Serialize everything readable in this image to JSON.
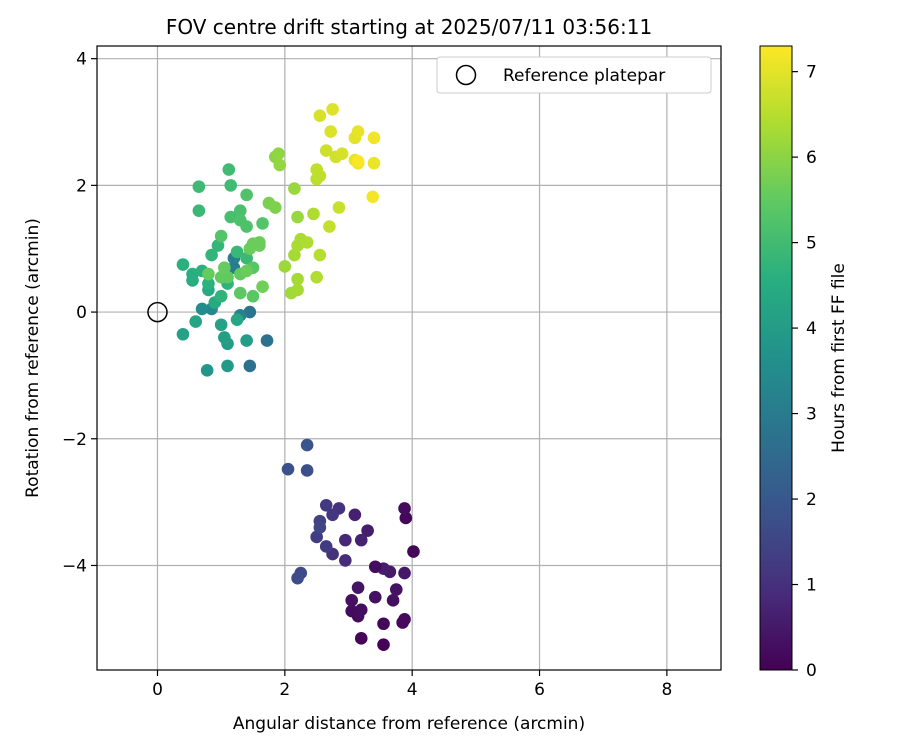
{
  "chart_data": {
    "type": "scatter",
    "title": "FOV centre drift starting at 2025/07/11 03:56:11",
    "xlabel": "Angular distance from reference (arcmin)",
    "ylabel": "Rotation from reference (arcmin)",
    "xlim": [
      -0.95,
      8.85
    ],
    "ylim": [
      -5.65,
      4.2
    ],
    "xticks": [
      0,
      2,
      4,
      6,
      8
    ],
    "yticks": [
      -4,
      -2,
      0,
      2,
      4
    ],
    "xtick_labels": [
      "0",
      "2",
      "4",
      "6",
      "8"
    ],
    "ytick_labels": [
      "−4",
      "−2",
      "0",
      "2",
      "4"
    ],
    "grid": true,
    "legend": {
      "placement": "top-right",
      "entries": [
        "Reference platepar"
      ]
    },
    "reference_point": {
      "x": 0,
      "y": 0,
      "label": "Reference platepar",
      "marker": "open-circle"
    },
    "colorbar": {
      "label": "Hours from first FF file",
      "colormap": "viridis",
      "range": [
        0,
        7.3
      ],
      "ticks": [
        0,
        1,
        2,
        3,
        4,
        5,
        6,
        7
      ],
      "tick_labels": [
        "0",
        "1",
        "2",
        "3",
        "4",
        "5",
        "6",
        "7"
      ]
    },
    "points": [
      {
        "x": 3.55,
        "y": -5.25,
        "h": 0.05
      },
      {
        "x": 3.2,
        "y": -5.15,
        "h": 0.1
      },
      {
        "x": 3.85,
        "y": -4.9,
        "h": 0.12
      },
      {
        "x": 3.55,
        "y": -4.92,
        "h": 0.15
      },
      {
        "x": 3.88,
        "y": -4.85,
        "h": 0.18
      },
      {
        "x": 3.15,
        "y": -4.8,
        "h": 0.2
      },
      {
        "x": 3.05,
        "y": -4.72,
        "h": 0.22
      },
      {
        "x": 3.2,
        "y": -4.7,
        "h": 0.25
      },
      {
        "x": 3.7,
        "y": -4.55,
        "h": 0.3
      },
      {
        "x": 3.05,
        "y": -4.55,
        "h": 0.32
      },
      {
        "x": 3.42,
        "y": -4.5,
        "h": 0.35
      },
      {
        "x": 3.75,
        "y": -4.38,
        "h": 0.38
      },
      {
        "x": 3.15,
        "y": -4.35,
        "h": 0.4
      },
      {
        "x": 3.88,
        "y": -4.12,
        "h": 0.45
      },
      {
        "x": 3.65,
        "y": -4.1,
        "h": 0.5
      },
      {
        "x": 3.55,
        "y": -4.05,
        "h": 0.55
      },
      {
        "x": 3.42,
        "y": -4.02,
        "h": 0.2
      },
      {
        "x": 4.02,
        "y": -3.78,
        "h": 0.1
      },
      {
        "x": 3.9,
        "y": -3.25,
        "h": 0.15
      },
      {
        "x": 3.88,
        "y": -3.1,
        "h": 0.2
      },
      {
        "x": 3.3,
        "y": -3.45,
        "h": 0.6
      },
      {
        "x": 3.1,
        "y": -3.2,
        "h": 0.65
      },
      {
        "x": 3.2,
        "y": -3.6,
        "h": 0.7
      },
      {
        "x": 2.95,
        "y": -3.6,
        "h": 0.8
      },
      {
        "x": 2.95,
        "y": -3.92,
        "h": 0.9
      },
      {
        "x": 2.75,
        "y": -3.82,
        "h": 1.0
      },
      {
        "x": 2.85,
        "y": -3.1,
        "h": 1.05
      },
      {
        "x": 2.75,
        "y": -3.2,
        "h": 1.15
      },
      {
        "x": 2.65,
        "y": -3.05,
        "h": 1.2
      },
      {
        "x": 2.65,
        "y": -3.7,
        "h": 1.25
      },
      {
        "x": 2.5,
        "y": -3.55,
        "h": 1.3
      },
      {
        "x": 2.55,
        "y": -3.3,
        "h": 1.4
      },
      {
        "x": 2.55,
        "y": -3.4,
        "h": 1.5
      },
      {
        "x": 2.25,
        "y": -4.12,
        "h": 1.6
      },
      {
        "x": 2.2,
        "y": -4.2,
        "h": 1.65
      },
      {
        "x": 2.35,
        "y": -2.5,
        "h": 1.75
      },
      {
        "x": 2.05,
        "y": -2.48,
        "h": 1.8
      },
      {
        "x": 2.35,
        "y": -2.1,
        "h": 1.9
      },
      {
        "x": 1.45,
        "y": -0.85,
        "h": 2.7
      },
      {
        "x": 1.72,
        "y": -0.45,
        "h": 2.75
      },
      {
        "x": 1.45,
        "y": 0.0,
        "h": 2.8
      },
      {
        "x": 1.2,
        "y": 0.7,
        "h": 3.0
      },
      {
        "x": 1.2,
        "y": 0.85,
        "h": 3.1
      },
      {
        "x": 1.3,
        "y": -0.05,
        "h": 3.2
      },
      {
        "x": 0.85,
        "y": 0.05,
        "h": 3.4
      },
      {
        "x": 0.7,
        "y": 0.05,
        "h": 3.5
      },
      {
        "x": 0.78,
        "y": -0.92,
        "h": 3.8
      },
      {
        "x": 1.1,
        "y": -0.85,
        "h": 3.9
      },
      {
        "x": 1.4,
        "y": -0.45,
        "h": 4.0
      },
      {
        "x": 1.1,
        "y": -0.5,
        "h": 4.0
      },
      {
        "x": 1.05,
        "y": -0.4,
        "h": 4.1
      },
      {
        "x": 0.4,
        "y": -0.35,
        "h": 4.2
      },
      {
        "x": 0.6,
        "y": -0.15,
        "h": 4.25
      },
      {
        "x": 1.25,
        "y": -0.12,
        "h": 4.3
      },
      {
        "x": 1.0,
        "y": -0.2,
        "h": 4.2
      },
      {
        "x": 0.8,
        "y": 0.35,
        "h": 4.4
      },
      {
        "x": 0.9,
        "y": 0.15,
        "h": 4.45
      },
      {
        "x": 0.55,
        "y": 0.5,
        "h": 4.5
      },
      {
        "x": 0.55,
        "y": 0.6,
        "h": 4.55
      },
      {
        "x": 0.7,
        "y": 0.65,
        "h": 4.6
      },
      {
        "x": 0.4,
        "y": 0.75,
        "h": 4.6
      },
      {
        "x": 0.8,
        "y": 0.45,
        "h": 4.65
      },
      {
        "x": 1.0,
        "y": 0.25,
        "h": 4.7
      },
      {
        "x": 1.1,
        "y": 0.45,
        "h": 4.7
      },
      {
        "x": 0.85,
        "y": 0.9,
        "h": 4.75
      },
      {
        "x": 0.95,
        "y": 1.05,
        "h": 4.8
      },
      {
        "x": 1.25,
        "y": 0.95,
        "h": 4.85
      },
      {
        "x": 1.4,
        "y": 0.85,
        "h": 4.9
      },
      {
        "x": 0.65,
        "y": 1.6,
        "h": 4.9
      },
      {
        "x": 0.65,
        "y": 1.98,
        "h": 4.95
      },
      {
        "x": 1.15,
        "y": 2.0,
        "h": 5.0
      },
      {
        "x": 1.12,
        "y": 2.25,
        "h": 5.0
      },
      {
        "x": 1.15,
        "y": 1.5,
        "h": 5.1
      },
      {
        "x": 1.3,
        "y": 1.6,
        "h": 5.15
      },
      {
        "x": 1.3,
        "y": 1.45,
        "h": 5.2
      },
      {
        "x": 1.4,
        "y": 1.35,
        "h": 5.2
      },
      {
        "x": 1.4,
        "y": 1.85,
        "h": 5.25
      },
      {
        "x": 1.65,
        "y": 1.4,
        "h": 5.3
      },
      {
        "x": 1.0,
        "y": 1.2,
        "h": 5.3
      },
      {
        "x": 1.5,
        "y": 0.7,
        "h": 5.35
      },
      {
        "x": 1.5,
        "y": 0.25,
        "h": 5.4
      },
      {
        "x": 1.3,
        "y": 0.3,
        "h": 5.45
      },
      {
        "x": 1.3,
        "y": 0.6,
        "h": 5.5
      },
      {
        "x": 1.1,
        "y": 0.55,
        "h": 5.5
      },
      {
        "x": 1.0,
        "y": 0.55,
        "h": 5.5
      },
      {
        "x": 1.05,
        "y": 0.7,
        "h": 5.55
      },
      {
        "x": 0.8,
        "y": 0.6,
        "h": 5.55
      },
      {
        "x": 1.4,
        "y": 0.65,
        "h": 5.6
      },
      {
        "x": 1.45,
        "y": 1.0,
        "h": 5.6
      },
      {
        "x": 1.5,
        "y": 1.08,
        "h": 5.6
      },
      {
        "x": 1.6,
        "y": 1.1,
        "h": 5.65
      },
      {
        "x": 1.65,
        "y": 0.4,
        "h": 5.7
      },
      {
        "x": 1.75,
        "y": 1.72,
        "h": 5.8
      },
      {
        "x": 1.85,
        "y": 1.65,
        "h": 5.85
      },
      {
        "x": 1.6,
        "y": 1.05,
        "h": 5.6
      },
      {
        "x": 1.85,
        "y": 2.45,
        "h": 6.0
      },
      {
        "x": 1.9,
        "y": 2.5,
        "h": 6.05
      },
      {
        "x": 1.92,
        "y": 2.32,
        "h": 6.1
      },
      {
        "x": 2.2,
        "y": 1.5,
        "h": 6.15
      },
      {
        "x": 2.15,
        "y": 1.95,
        "h": 6.15
      },
      {
        "x": 2.0,
        "y": 0.72,
        "h": 6.2
      },
      {
        "x": 2.1,
        "y": 0.3,
        "h": 6.25
      },
      {
        "x": 2.2,
        "y": 0.35,
        "h": 6.3
      },
      {
        "x": 2.2,
        "y": 0.52,
        "h": 6.3
      },
      {
        "x": 2.15,
        "y": 0.9,
        "h": 6.3
      },
      {
        "x": 2.2,
        "y": 1.05,
        "h": 6.35
      },
      {
        "x": 2.25,
        "y": 1.15,
        "h": 6.35
      },
      {
        "x": 2.35,
        "y": 1.1,
        "h": 6.4
      },
      {
        "x": 2.45,
        "y": 1.55,
        "h": 6.4
      },
      {
        "x": 2.5,
        "y": 0.55,
        "h": 6.45
      },
      {
        "x": 2.55,
        "y": 0.9,
        "h": 6.5
      },
      {
        "x": 2.5,
        "y": 2.1,
        "h": 6.55
      },
      {
        "x": 2.5,
        "y": 2.25,
        "h": 6.6
      },
      {
        "x": 2.55,
        "y": 2.15,
        "h": 6.6
      },
      {
        "x": 2.7,
        "y": 1.35,
        "h": 6.65
      },
      {
        "x": 2.85,
        "y": 1.65,
        "h": 6.7
      },
      {
        "x": 2.65,
        "y": 2.55,
        "h": 6.75
      },
      {
        "x": 2.8,
        "y": 2.45,
        "h": 6.8
      },
      {
        "x": 2.9,
        "y": 2.5,
        "h": 6.85
      },
      {
        "x": 2.55,
        "y": 3.1,
        "h": 6.85
      },
      {
        "x": 2.72,
        "y": 2.85,
        "h": 6.9
      },
      {
        "x": 2.75,
        "y": 3.2,
        "h": 6.95
      },
      {
        "x": 3.1,
        "y": 2.75,
        "h": 7.0
      },
      {
        "x": 3.15,
        "y": 2.85,
        "h": 7.05
      },
      {
        "x": 3.1,
        "y": 2.4,
        "h": 7.05
      },
      {
        "x": 3.15,
        "y": 2.35,
        "h": 7.1
      },
      {
        "x": 3.4,
        "y": 2.35,
        "h": 7.1
      },
      {
        "x": 3.4,
        "y": 2.75,
        "h": 7.15
      },
      {
        "x": 3.38,
        "y": 1.82,
        "h": 7.2
      },
      {
        "x": 3.15,
        "y": 2.38,
        "h": 7.25
      }
    ]
  }
}
